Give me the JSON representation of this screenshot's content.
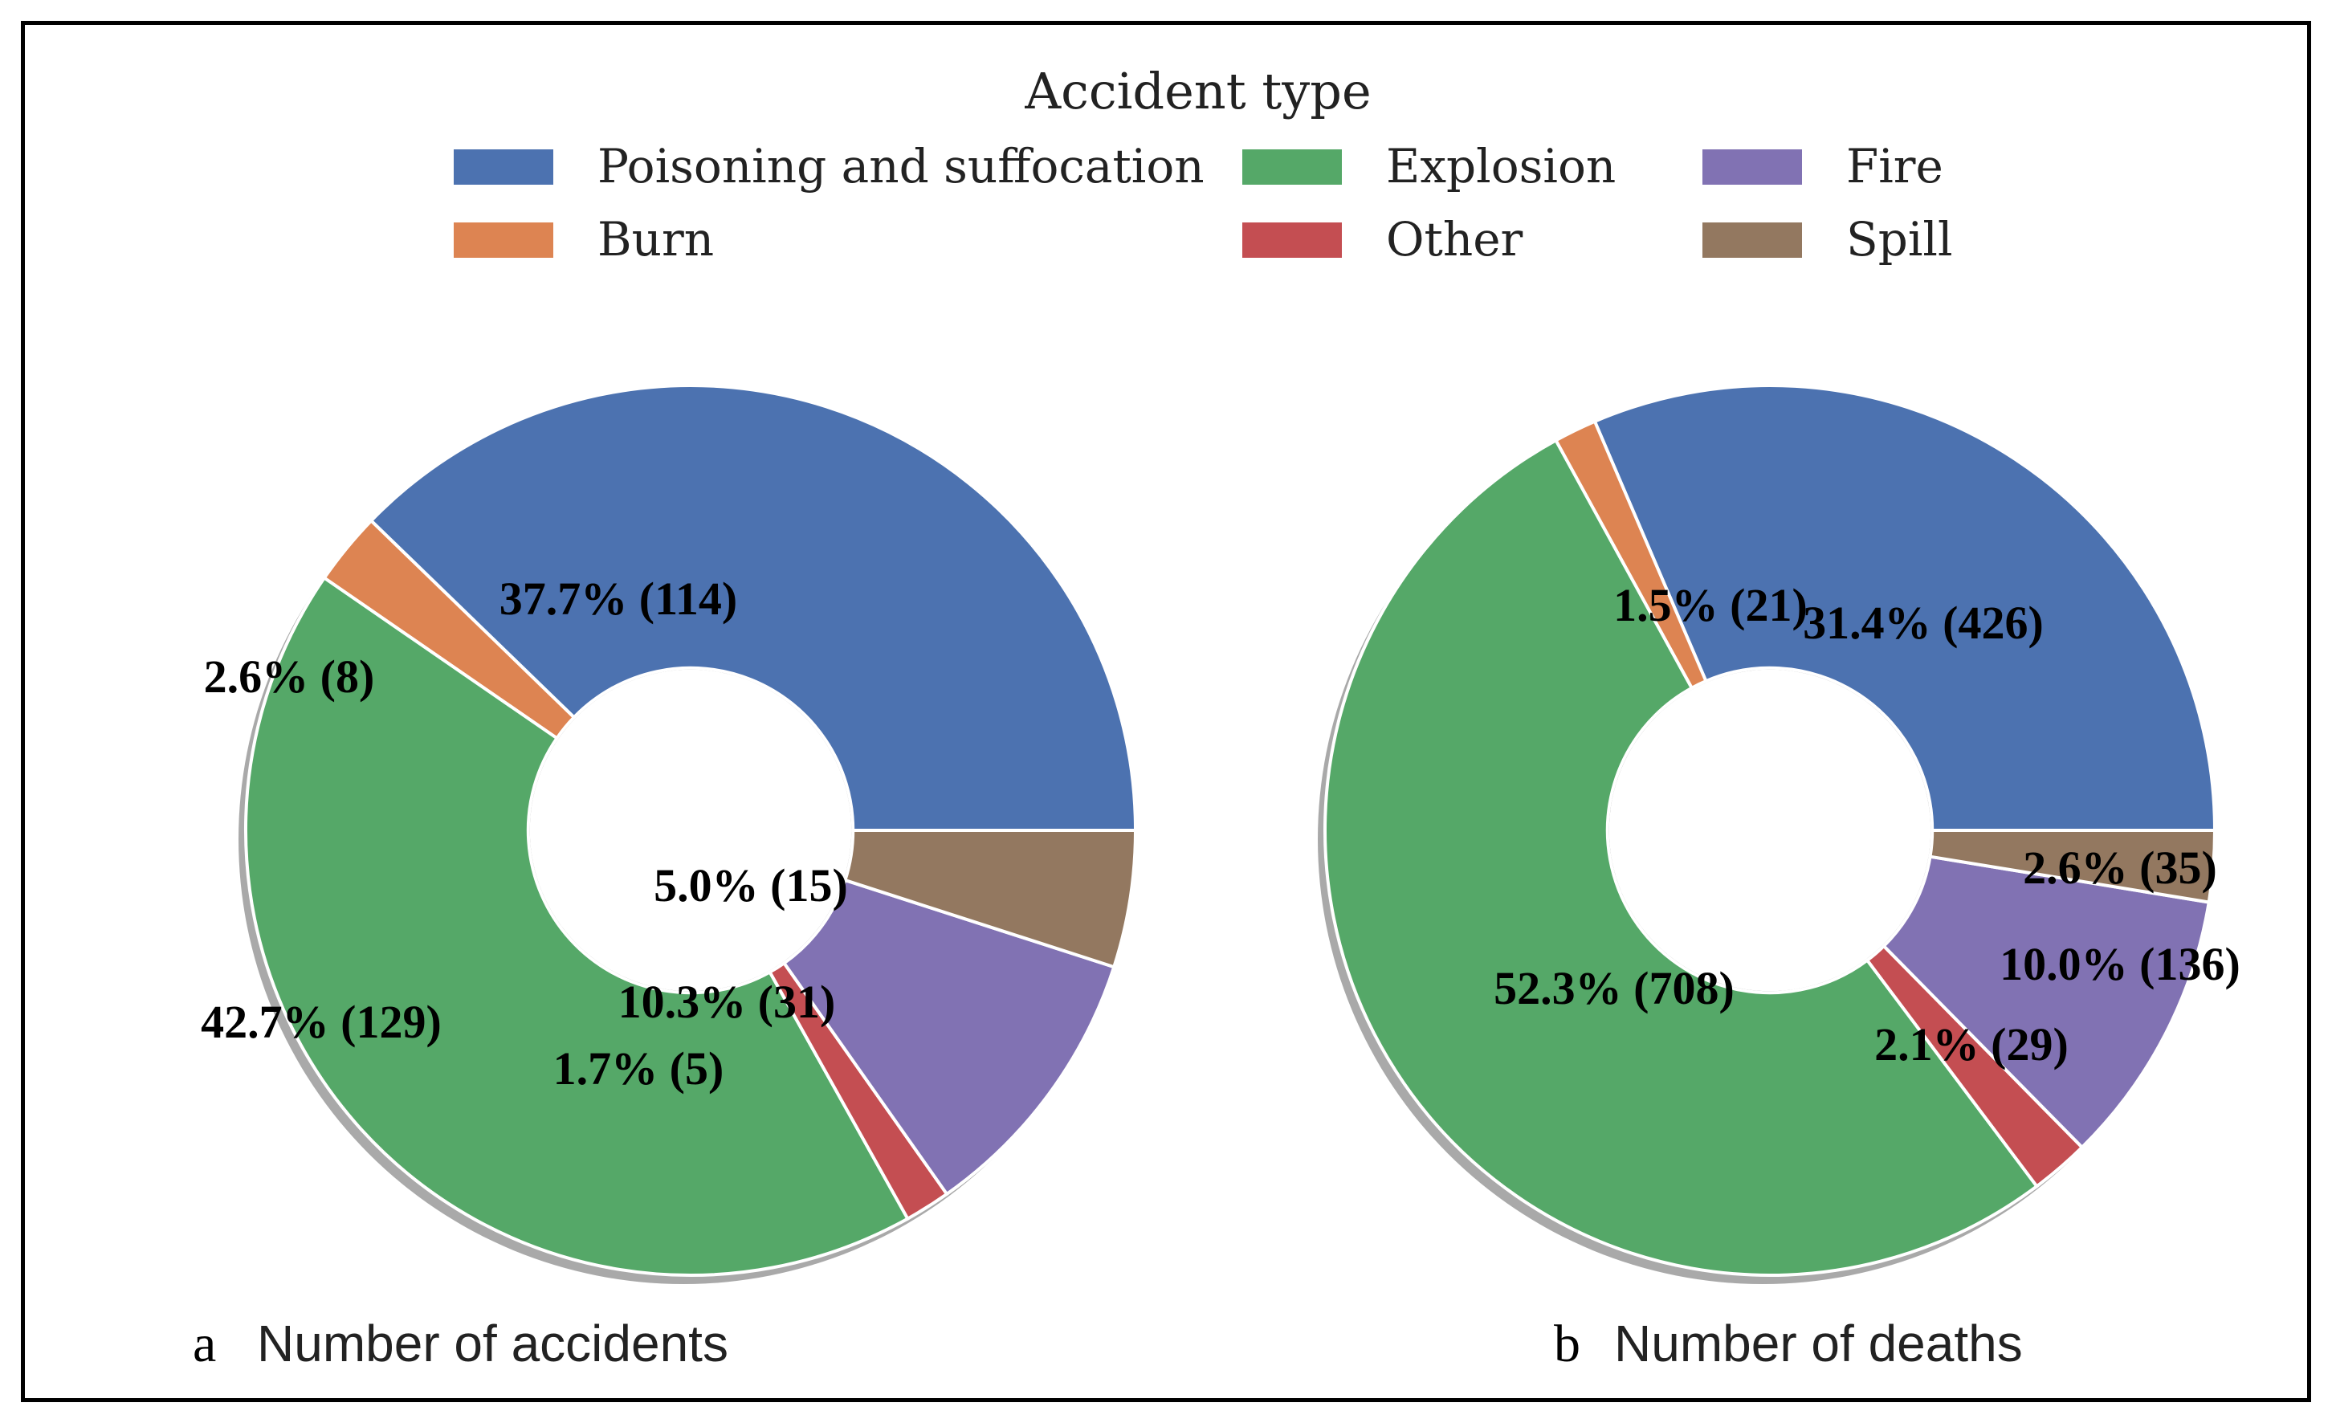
{
  "chart_data": {
    "type": "pie",
    "legend": {
      "title": "Accident type",
      "placement": "top-center",
      "entries": [
        {
          "name": "Poisoning and suffocation",
          "color": "#4c72b0"
        },
        {
          "name": "Burn",
          "color": "#dd8452"
        },
        {
          "name": "Explosion",
          "color": "#55a868"
        },
        {
          "name": "Other",
          "color": "#c44e52"
        },
        {
          "name": "Fire",
          "color": "#8172b3"
        },
        {
          "name": "Spill",
          "color": "#937860"
        }
      ]
    },
    "charts": [
      {
        "letter": "a",
        "title": "Number of accidents",
        "slices": [
          {
            "category": "Poisoning and suffocation",
            "value": 114,
            "percent": 37.7,
            "label": "37.7% (114)"
          },
          {
            "category": "Burn",
            "value": 8,
            "percent": 2.6,
            "label": "2.6% (8)"
          },
          {
            "category": "Explosion",
            "value": 129,
            "percent": 42.7,
            "label": "42.7% (129)"
          },
          {
            "category": "Other",
            "value": 5,
            "percent": 1.7,
            "label": "1.7% (5)"
          },
          {
            "category": "Fire",
            "value": 31,
            "percent": 10.3,
            "label": "10.3% (31)"
          },
          {
            "category": "Spill",
            "value": 15,
            "percent": 5.0,
            "label": "5.0% (15)"
          }
        ]
      },
      {
        "letter": "b",
        "title": "Number of deaths",
        "slices": [
          {
            "category": "Poisoning and suffocation",
            "value": 426,
            "percent": 31.4,
            "label": "31.4% (426)"
          },
          {
            "category": "Burn",
            "value": 21,
            "percent": 1.5,
            "label": "1.5% (21)"
          },
          {
            "category": "Explosion",
            "value": 708,
            "percent": 52.3,
            "label": "52.3% (708)"
          },
          {
            "category": "Other",
            "value": 29,
            "percent": 2.1,
            "label": "2.1% (29)"
          },
          {
            "category": "Fire",
            "value": 136,
            "percent": 10.0,
            "label": "10.0% (136)"
          },
          {
            "category": "Spill",
            "value": 35,
            "percent": 2.6,
            "label": "2.6% (35)"
          }
        ]
      }
    ]
  }
}
